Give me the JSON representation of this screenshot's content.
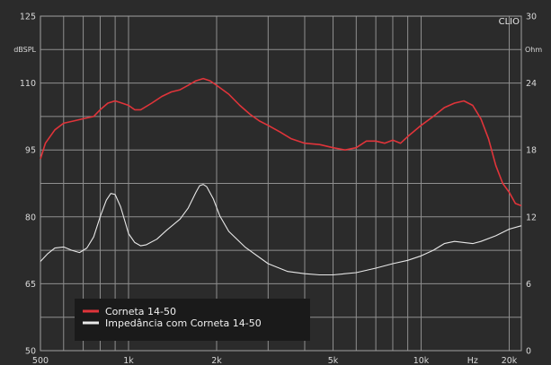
{
  "chart_data": {
    "type": "line",
    "brand": "CLIO",
    "x_scale": "log",
    "xlim": [
      500,
      22000
    ],
    "x_tick_labels": [
      {
        "value": 500,
        "label": "500"
      },
      {
        "value": 1000,
        "label": "1k"
      },
      {
        "value": 2000,
        "label": "2k"
      },
      {
        "value": 5000,
        "label": "5k"
      },
      {
        "value": 10000,
        "label": "10k"
      },
      {
        "value": 15000,
        "label": "Hz"
      },
      {
        "value": 20000,
        "label": "20k"
      }
    ],
    "ylim_left": [
      50,
      125
    ],
    "ylabel_left": "dBSPL",
    "y_left_ticks": [
      50,
      65,
      80,
      95,
      110,
      125
    ],
    "ylim_right": [
      0,
      30
    ],
    "ylabel_right": "Ohm",
    "y_right_ticks": [
      0,
      6,
      12,
      18,
      24,
      30
    ],
    "grid": true,
    "legend_position": "bottom-left",
    "colors": {
      "background": "#2b2b2b",
      "grid": "#8f8f8f",
      "spl": "#e0343a",
      "impedance": "#e8e8e8",
      "legend_bg": "#1a1a1a"
    },
    "series": [
      {
        "name": "Corneta 14-50",
        "axis": "left",
        "color": "#e0343a",
        "points": [
          [
            500,
            93
          ],
          [
            520,
            96.5
          ],
          [
            560,
            99.5
          ],
          [
            600,
            101
          ],
          [
            650,
            101.5
          ],
          [
            700,
            102
          ],
          [
            760,
            102.5
          ],
          [
            800,
            104
          ],
          [
            850,
            105.5
          ],
          [
            900,
            106
          ],
          [
            950,
            105.5
          ],
          [
            1000,
            105
          ],
          [
            1050,
            104
          ],
          [
            1100,
            104
          ],
          [
            1200,
            105.5
          ],
          [
            1300,
            107
          ],
          [
            1400,
            108
          ],
          [
            1500,
            108.5
          ],
          [
            1600,
            109.5
          ],
          [
            1700,
            110.5
          ],
          [
            1800,
            111
          ],
          [
            1900,
            110.5
          ],
          [
            2000,
            109.5
          ],
          [
            2200,
            107.5
          ],
          [
            2400,
            105
          ],
          [
            2600,
            103
          ],
          [
            2800,
            101.5
          ],
          [
            3000,
            100.5
          ],
          [
            3300,
            99
          ],
          [
            3600,
            97.5
          ],
          [
            4000,
            96.5
          ],
          [
            4500,
            96.2
          ],
          [
            5000,
            95.5
          ],
          [
            5500,
            95
          ],
          [
            6000,
            95.5
          ],
          [
            6500,
            97
          ],
          [
            7000,
            97
          ],
          [
            7500,
            96.5
          ],
          [
            8000,
            97.2
          ],
          [
            8500,
            96.5
          ],
          [
            9000,
            98
          ],
          [
            10000,
            100.5
          ],
          [
            11000,
            102.5
          ],
          [
            12000,
            104.5
          ],
          [
            13000,
            105.5
          ],
          [
            14000,
            106
          ],
          [
            15000,
            105
          ],
          [
            16000,
            102
          ],
          [
            17000,
            97.5
          ],
          [
            18000,
            91.5
          ],
          [
            19000,
            87.5
          ],
          [
            20000,
            85.5
          ],
          [
            21000,
            83
          ],
          [
            22000,
            82.5
          ]
        ]
      },
      {
        "name": "Impedância com Corneta 14-50",
        "axis": "right",
        "color": "#e8e8e8",
        "points": [
          [
            500,
            8
          ],
          [
            530,
            8.7
          ],
          [
            560,
            9.2
          ],
          [
            600,
            9.3
          ],
          [
            640,
            9.0
          ],
          [
            680,
            8.8
          ],
          [
            720,
            9.2
          ],
          [
            760,
            10.2
          ],
          [
            800,
            12.0
          ],
          [
            840,
            13.5
          ],
          [
            870,
            14.1
          ],
          [
            900,
            14.0
          ],
          [
            940,
            12.9
          ],
          [
            980,
            11.3
          ],
          [
            1000,
            10.5
          ],
          [
            1050,
            9.7
          ],
          [
            1100,
            9.4
          ],
          [
            1150,
            9.5
          ],
          [
            1250,
            10.0
          ],
          [
            1350,
            10.8
          ],
          [
            1500,
            11.8
          ],
          [
            1600,
            12.8
          ],
          [
            1700,
            14.2
          ],
          [
            1750,
            14.8
          ],
          [
            1800,
            14.9
          ],
          [
            1850,
            14.7
          ],
          [
            1950,
            13.6
          ],
          [
            2050,
            12.1
          ],
          [
            2200,
            10.7
          ],
          [
            2500,
            9.3
          ],
          [
            3000,
            7.8
          ],
          [
            3500,
            7.1
          ],
          [
            4000,
            6.9
          ],
          [
            4500,
            6.8
          ],
          [
            5000,
            6.8
          ],
          [
            6000,
            7.0
          ],
          [
            7000,
            7.4
          ],
          [
            8000,
            7.8
          ],
          [
            9000,
            8.1
          ],
          [
            10000,
            8.5
          ],
          [
            11000,
            9.0
          ],
          [
            12000,
            9.6
          ],
          [
            13000,
            9.8
          ],
          [
            14000,
            9.7
          ],
          [
            15000,
            9.6
          ],
          [
            16000,
            9.8
          ],
          [
            18000,
            10.3
          ],
          [
            20000,
            10.9
          ],
          [
            22000,
            11.2
          ]
        ]
      }
    ]
  }
}
